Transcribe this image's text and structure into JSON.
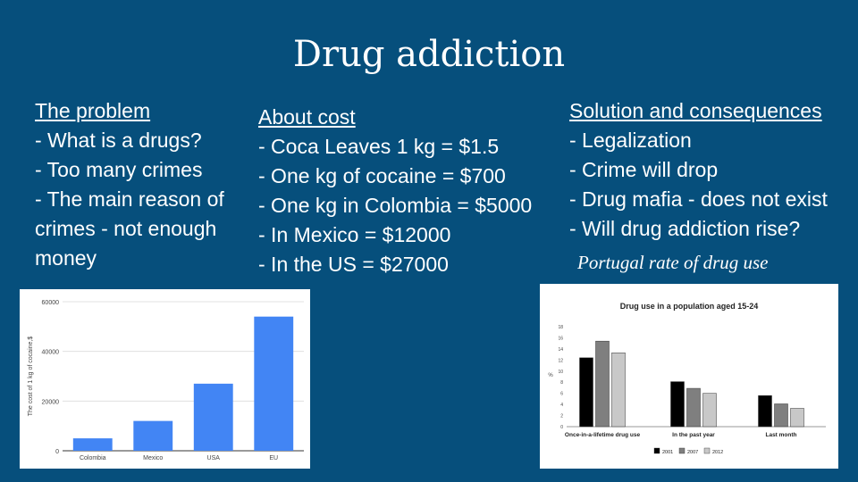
{
  "title": "Drug addiction",
  "problem": {
    "heading": "The problem",
    "lines": [
      "-  What is a drugs?",
      "- Too many crimes",
      "- The main reason of",
      "crimes - not enough",
      "money"
    ]
  },
  "cost": {
    "heading": "About cost",
    "lines": [
      "-  Coca Leaves 1 kg = $1.5",
      "- One kg of cocaine = $700",
      "- One kg in Colombia = $5000",
      "- In Mexico = $12000",
      "- In the US = $27000"
    ]
  },
  "solution": {
    "heading": "Solution and consequences",
    "lines": [
      "- Legalization",
      "- Crime will drop",
      "- Drug mafia - does not exist",
      "- Will drug addiction rise?"
    ]
  },
  "caption": "Portugal rate of drug use",
  "colors": {
    "background": "#064f7c",
    "bar": "#4285f4"
  },
  "chart_data": [
    {
      "type": "bar",
      "title": "",
      "xlabel": "",
      "ylabel": "The cost of 1 kg of cocaine,$",
      "categories": [
        "Colombia",
        "Mexico",
        "USA",
        "EU"
      ],
      "values": [
        5000,
        12000,
        27000,
        54000
      ],
      "yticks": [
        0,
        20000,
        40000,
        60000
      ],
      "ytick_labels": [
        "0",
        "20000",
        "40000",
        "60000"
      ],
      "ylim": [
        0,
        60000
      ],
      "grid": true,
      "legend": "none"
    },
    {
      "type": "bar",
      "title": "Drug use in a population aged 15-24",
      "ylabel": "%",
      "categories": [
        "Once-in-a-lifetime drug use",
        "In the past year",
        "Last month"
      ],
      "series": [
        {
          "name": "2001",
          "values": [
            12.4,
            8.1,
            5.6
          ],
          "color": "#000000"
        },
        {
          "name": "2007",
          "values": [
            15.4,
            6.9,
            4.1
          ],
          "color": "#7f7f7f"
        },
        {
          "name": "2012",
          "values": [
            13.3,
            6.0,
            3.3
          ],
          "color": "#c8c8c8"
        }
      ],
      "yticks": [
        0,
        2,
        4,
        6,
        8,
        10,
        12,
        14,
        16,
        18
      ],
      "ytick_labels": [
        "0",
        "2",
        "4",
        "6",
        "8",
        "10",
        "12",
        "14",
        "16",
        "18"
      ],
      "ylim": [
        0,
        18
      ],
      "grid": false,
      "legend": "bottom"
    }
  ]
}
